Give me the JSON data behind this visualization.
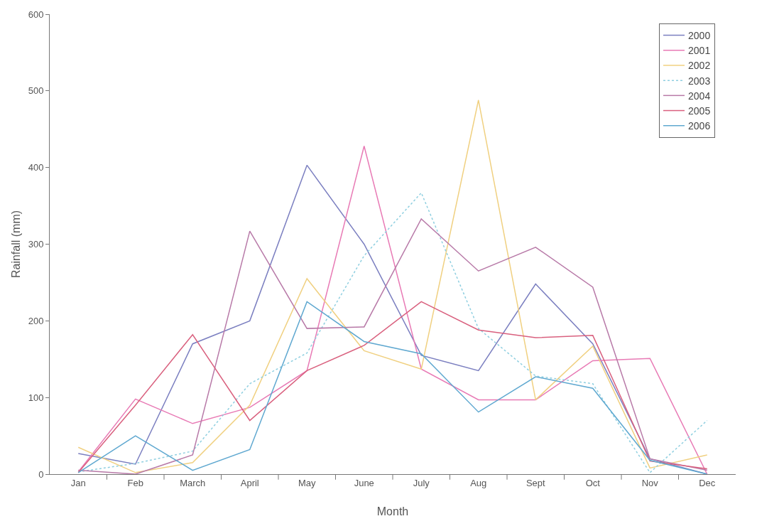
{
  "chart_data": {
    "type": "line",
    "xlabel": "Month",
    "ylabel": "Rainfall (mm)",
    "categories": [
      "Jan",
      "Feb",
      "March",
      "April",
      "May",
      "June",
      "July",
      "Aug",
      "Sept",
      "Oct",
      "Nov",
      "Dec"
    ],
    "series": [
      {
        "name": "2000",
        "color": "#7b7fc0",
        "values": [
          27,
          13,
          170,
          200,
          403,
          300,
          155,
          135,
          248,
          170,
          20,
          0
        ]
      },
      {
        "name": "2001",
        "color": "#e87ab5",
        "values": [
          3,
          98,
          66,
          87,
          135,
          428,
          137,
          97,
          97,
          148,
          151,
          0
        ]
      },
      {
        "name": "2002",
        "color": "#f0d080",
        "values": [
          35,
          2,
          15,
          90,
          255,
          161,
          137,
          488,
          97,
          167,
          8,
          25
        ]
      },
      {
        "name": "2003",
        "color": "#8fcfe0",
        "line_style": "dotted",
        "values": [
          3,
          14,
          30,
          118,
          158,
          285,
          367,
          190,
          128,
          118,
          2,
          70
        ]
      },
      {
        "name": "2004",
        "color": "#b87aa8",
        "values": [
          5,
          0,
          25,
          317,
          190,
          192,
          333,
          265,
          296,
          244,
          20,
          5
        ]
      },
      {
        "name": "2005",
        "color": "#d9607e",
        "values": [
          2,
          90,
          182,
          70,
          135,
          168,
          225,
          188,
          178,
          181,
          17,
          7
        ]
      },
      {
        "name": "2006",
        "color": "#5fa8d0",
        "values": [
          2,
          50,
          5,
          32,
          225,
          173,
          157,
          81,
          127,
          112,
          18,
          0
        ]
      }
    ],
    "ylim": [
      0,
      600
    ],
    "yticks": [
      0,
      100,
      200,
      300,
      400,
      500,
      600
    ],
    "grid": false,
    "legend": "top right",
    "marker": "none",
    "line_style": "solid"
  }
}
